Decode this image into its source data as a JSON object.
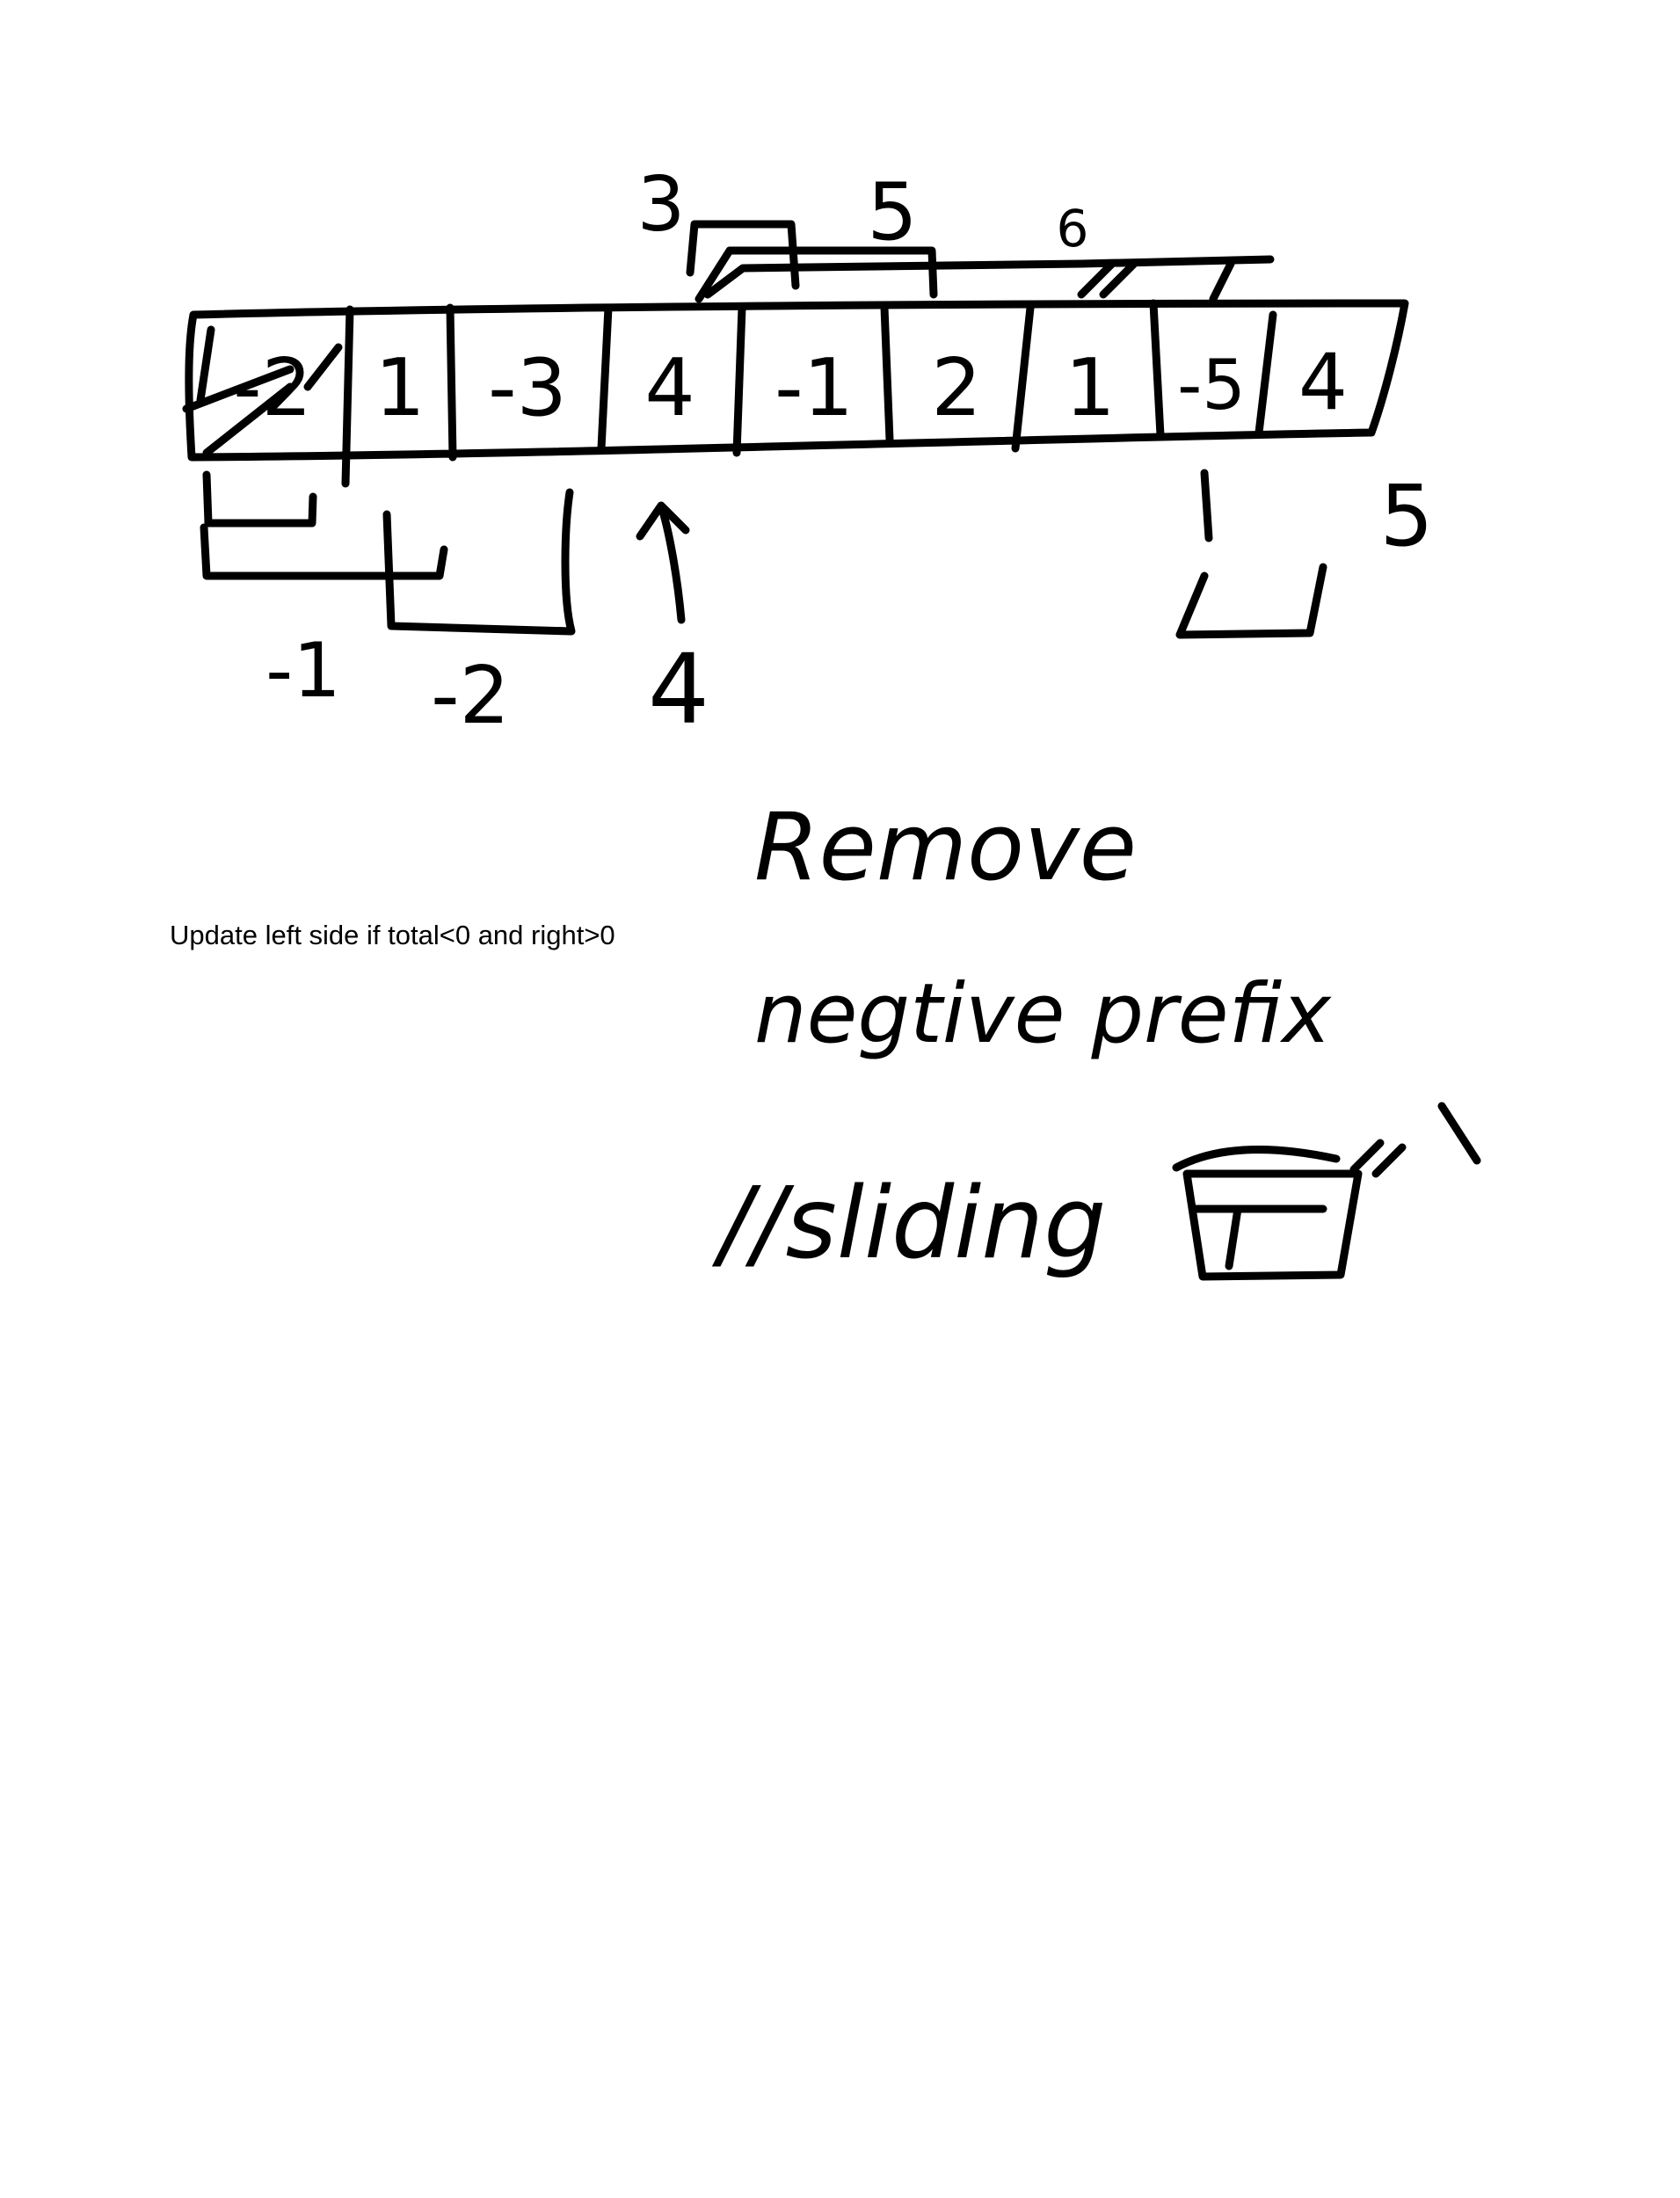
{
  "array_cells": [
    "-2",
    "1",
    "-3",
    "4",
    "-1",
    "2",
    "1",
    "-5",
    "4"
  ],
  "above_labels": [
    "3",
    "5",
    "6"
  ],
  "below_labels": [
    "-1",
    "-2",
    "4"
  ],
  "right_label": "5",
  "typed_note": "Update left side if total<0 and right>0",
  "handwritten_lines": [
    "Remove",
    "negtive prefix",
    "//sliding"
  ],
  "ink_color": "#000000",
  "background_color": "#ffffff"
}
